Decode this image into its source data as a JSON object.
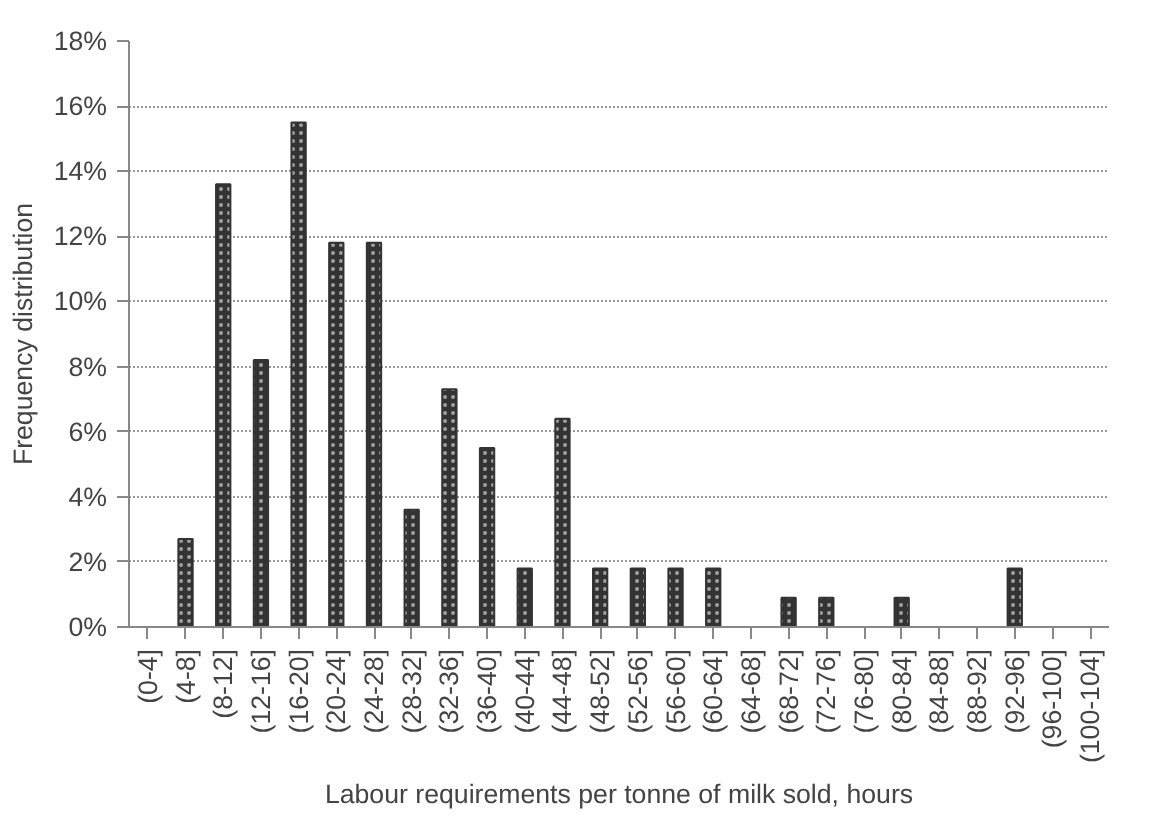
{
  "chart_data": {
    "type": "bar",
    "xlabel": "Labour requirements per tonne of milk sold, hours",
    "ylabel": "Frequency distribution",
    "categories": [
      "(0-4]",
      "(4-8]",
      "(8-12]",
      "(12-16]",
      "(16-20]",
      "(20-24]",
      "(24-28]",
      "(28-32]",
      "(32-36]",
      "(36-40]",
      "(40-44]",
      "(44-48]",
      "(48-52]",
      "(52-56]",
      "(56-60]",
      "(60-64]",
      "(64-68]",
      "(68-72]",
      "(72-76]",
      "(76-80]",
      "(80-84]",
      "(84-88]",
      "(88-92]",
      "(92-96]",
      "(96-100]",
      "(100-104]"
    ],
    "values": [
      0,
      2.7,
      13.6,
      8.2,
      15.5,
      11.8,
      11.8,
      3.6,
      7.3,
      5.5,
      1.8,
      6.4,
      1.8,
      1.8,
      1.8,
      1.8,
      0,
      0.9,
      0.9,
      0,
      0.9,
      0,
      0,
      1.8,
      0,
      0
    ],
    "color": "#333333",
    "ylim": [
      0,
      18
    ],
    "yticks": [
      {
        "value": 0,
        "label": "0%"
      },
      {
        "value": 2,
        "label": "2%"
      },
      {
        "value": 4,
        "label": "4%"
      },
      {
        "value": 6,
        "label": "6%"
      },
      {
        "value": 8,
        "label": "8%"
      },
      {
        "value": 10,
        "label": "10%"
      },
      {
        "value": 12,
        "label": "12%"
      },
      {
        "value": 14,
        "label": "14%"
      },
      {
        "value": 16,
        "label": "16%"
      },
      {
        "value": 18,
        "label": "18%"
      }
    ],
    "grid": "y"
  }
}
